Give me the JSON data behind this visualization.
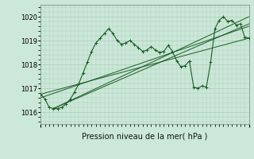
{
  "title": "Pression niveau de la mer( hPa )",
  "ylim": [
    1015.5,
    1020.5
  ],
  "yticks": [
    1016,
    1017,
    1018,
    1019,
    1020
  ],
  "bg_color": "#cce8d8",
  "grid_color": "#aaccbb",
  "line_color": "#1a5c28",
  "n_points": 50,
  "series1": [
    1016.75,
    1016.55,
    1016.2,
    1016.15,
    1016.15,
    1016.2,
    1016.35,
    1016.55,
    1016.85,
    1017.2,
    1017.65,
    1018.1,
    1018.55,
    1018.9,
    1019.1,
    1019.3,
    1019.5,
    1019.3,
    1019.0,
    1018.85,
    1018.9,
    1019.0,
    1018.85,
    1018.7,
    1018.55,
    1018.6,
    1018.75,
    1018.6,
    1018.5,
    1018.55,
    1018.8,
    1018.55,
    1018.15,
    1017.9,
    1017.95,
    1018.15,
    1017.05,
    1017.0,
    1017.1,
    1017.05,
    1018.1,
    1019.5,
    1019.85,
    1020.0,
    1019.8,
    1019.85,
    1019.65,
    1019.7,
    1019.15,
    1019.1
  ],
  "straight_lines": [
    {
      "x": [
        0,
        49
      ],
      "y": [
        1016.75,
        1019.1
      ]
    },
    {
      "x": [
        0,
        49
      ],
      "y": [
        1016.6,
        1019.6
      ]
    },
    {
      "x": [
        3,
        49
      ],
      "y": [
        1016.15,
        1019.7
      ]
    },
    {
      "x": [
        3,
        49
      ],
      "y": [
        1016.15,
        1020.0
      ]
    }
  ]
}
